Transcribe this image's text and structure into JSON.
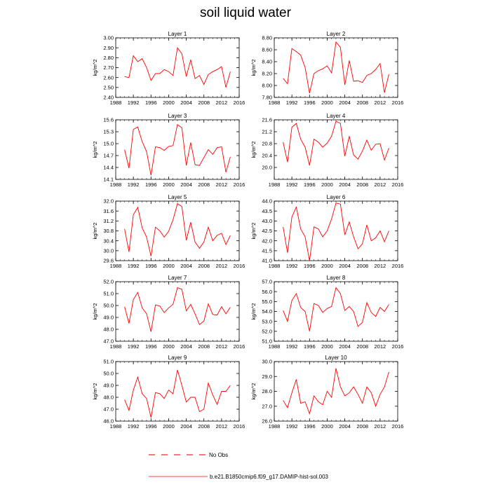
{
  "title": "soil liquid water",
  "legend": {
    "items": [
      {
        "label": "No Obs",
        "style": "dashed",
        "color": "#cc0000"
      },
      {
        "label": "b.e21.B1850cmip6.f09_g17.DAMIP-hist-sol.003",
        "style": "solid",
        "color": "#ff0000"
      }
    ]
  },
  "chart_data": [
    {
      "type": "line",
      "title": "Layer 1",
      "xlabel": "",
      "ylabel": "kg/m^2",
      "xlim": [
        1988,
        2016
      ],
      "ylim": [
        2.4,
        3.0
      ],
      "xticks": [
        "1988",
        "1992",
        "1996",
        "2000",
        "2004",
        "2008",
        "2012",
        "2016"
      ],
      "yticks": [
        "2.40",
        "2.50",
        "2.60",
        "2.70",
        "2.80",
        "2.90",
        "3.00"
      ],
      "x": [
        1990,
        1991,
        1992,
        1993,
        1994,
        1995,
        1996,
        1997,
        1998,
        1999,
        2000,
        2001,
        2002,
        2003,
        2004,
        2005,
        2006,
        2007,
        2008,
        2009,
        2010,
        2011,
        2012,
        2013,
        2014
      ],
      "series": [
        {
          "values": [
            2.61,
            2.6,
            2.82,
            2.76,
            2.79,
            2.7,
            2.57,
            2.64,
            2.64,
            2.68,
            2.66,
            2.62,
            2.9,
            2.84,
            2.61,
            2.78,
            2.59,
            2.62,
            2.53,
            2.63,
            2.66,
            2.68,
            2.71,
            2.5,
            2.66
          ]
        }
      ]
    },
    {
      "type": "line",
      "title": "Layer 2",
      "xlabel": "",
      "ylabel": "kg/m^2",
      "xlim": [
        1988,
        2016
      ],
      "ylim": [
        7.8,
        8.8
      ],
      "xticks": [
        "1988",
        "1992",
        "1996",
        "2000",
        "2004",
        "2008",
        "2012",
        "2016"
      ],
      "yticks": [
        "7.80",
        "8.00",
        "8.20",
        "8.40",
        "8.60",
        "8.80"
      ],
      "x": [
        1990,
        1991,
        1992,
        1993,
        1994,
        1995,
        1996,
        1997,
        1998,
        1999,
        2000,
        2001,
        2002,
        2003,
        2004,
        2005,
        2006,
        2007,
        2008,
        2009,
        2010,
        2011,
        2012,
        2013,
        2014
      ],
      "series": [
        {
          "values": [
            8.12,
            8.03,
            8.62,
            8.57,
            8.51,
            8.3,
            7.87,
            8.2,
            8.25,
            8.28,
            8.33,
            8.21,
            8.73,
            8.64,
            8.01,
            8.42,
            8.07,
            8.08,
            8.05,
            8.17,
            8.2,
            8.27,
            8.37,
            7.88,
            8.19
          ]
        }
      ]
    },
    {
      "type": "line",
      "title": "Layer 3",
      "xlabel": "",
      "ylabel": "kg/m^2",
      "xlim": [
        1988,
        2016
      ],
      "ylim": [
        14.1,
        15.6
      ],
      "xticks": [
        "1988",
        "1992",
        "1996",
        "2000",
        "2004",
        "2008",
        "2012",
        "2016"
      ],
      "yticks": [
        "14.1",
        "14.4",
        "14.7",
        "15.0",
        "15.3",
        "15.6"
      ],
      "x": [
        1990,
        1991,
        1992,
        1993,
        1994,
        1995,
        1996,
        1997,
        1998,
        1999,
        2000,
        2001,
        2002,
        2003,
        2004,
        2005,
        2006,
        2007,
        2008,
        2009,
        2010,
        2011,
        2012,
        2013,
        2014
      ],
      "series": [
        {
          "values": [
            14.85,
            14.38,
            15.36,
            15.42,
            15.05,
            14.8,
            14.2,
            14.92,
            14.9,
            14.83,
            14.93,
            14.95,
            15.48,
            15.4,
            14.45,
            15.03,
            14.47,
            14.45,
            14.65,
            14.85,
            14.73,
            14.9,
            14.92,
            14.28,
            14.67
          ]
        }
      ]
    },
    {
      "type": "line",
      "title": "Layer 4",
      "xlabel": "",
      "ylabel": "kg/m^2",
      "xlim": [
        1988,
        2016
      ],
      "ylim": [
        19.6,
        21.6
      ],
      "xticks": [
        "1988",
        "1992",
        "1996",
        "2000",
        "2004",
        "2008",
        "2012",
        "2016"
      ],
      "yticks": [
        "20.0",
        "20.4",
        "20.8",
        "21.2",
        "21.6"
      ],
      "x": [
        1990,
        1991,
        1992,
        1993,
        1994,
        1995,
        1996,
        1997,
        1998,
        1999,
        2000,
        2001,
        2002,
        2003,
        2004,
        2005,
        2006,
        2007,
        2008,
        2009,
        2010,
        2011,
        2012,
        2013,
        2014
      ],
      "series": [
        {
          "values": [
            20.85,
            20.18,
            21.35,
            21.48,
            20.95,
            20.68,
            20.07,
            20.95,
            20.85,
            20.68,
            20.82,
            21.05,
            21.55,
            21.48,
            20.38,
            21.05,
            20.42,
            20.28,
            20.55,
            20.92,
            20.58,
            20.78,
            20.8,
            20.25,
            20.65
          ]
        }
      ]
    },
    {
      "type": "line",
      "title": "Layer 5",
      "xlabel": "",
      "ylabel": "kg/m^2",
      "xlim": [
        1988,
        2016
      ],
      "ylim": [
        29.6,
        32.0
      ],
      "xticks": [
        "1988",
        "1992",
        "1996",
        "2000",
        "2004",
        "2008",
        "2012",
        "2016"
      ],
      "yticks": [
        "29.6",
        "30.0",
        "30.4",
        "30.8",
        "31.2",
        "31.6",
        "32.0"
      ],
      "x": [
        1990,
        1991,
        1992,
        1993,
        1994,
        1995,
        1996,
        1997,
        1998,
        1999,
        2000,
        2001,
        2002,
        2003,
        2004,
        2005,
        2006,
        2007,
        2008,
        2009,
        2010,
        2011,
        2012,
        2013,
        2014
      ],
      "series": [
        {
          "values": [
            30.88,
            29.95,
            31.45,
            31.75,
            30.92,
            30.55,
            29.78,
            30.95,
            30.8,
            30.55,
            30.78,
            31.25,
            31.9,
            31.78,
            30.42,
            31.15,
            30.35,
            30.1,
            30.35,
            30.95,
            30.4,
            30.62,
            30.7,
            30.25,
            30.62
          ]
        }
      ]
    },
    {
      "type": "line",
      "title": "Layer 6",
      "xlabel": "",
      "ylabel": "kg/m^2",
      "xlim": [
        1988,
        2016
      ],
      "ylim": [
        41.0,
        44.0
      ],
      "xticks": [
        "1988",
        "1992",
        "1996",
        "2000",
        "2004",
        "2008",
        "2012",
        "2016"
      ],
      "yticks": [
        "41.0",
        "41.5",
        "42.0",
        "42.5",
        "43.0",
        "43.5",
        "44.0"
      ],
      "x": [
        1990,
        1991,
        1992,
        1993,
        1994,
        1995,
        1996,
        1997,
        1998,
        1999,
        2000,
        2001,
        2002,
        2003,
        2004,
        2005,
        2006,
        2007,
        2008,
        2009,
        2010,
        2011,
        2012,
        2013,
        2014
      ],
      "series": [
        {
          "values": [
            42.7,
            41.4,
            43.2,
            43.7,
            42.6,
            42.2,
            41.0,
            42.7,
            42.6,
            42.2,
            42.5,
            43.1,
            43.9,
            43.85,
            42.3,
            42.95,
            42.2,
            41.6,
            41.85,
            42.8,
            42.0,
            42.15,
            42.5,
            41.95,
            42.5
          ]
        }
      ]
    },
    {
      "type": "line",
      "title": "Layer 7",
      "xlabel": "",
      "ylabel": "kg/m^2",
      "xlim": [
        1988,
        2016
      ],
      "ylim": [
        47.0,
        52.0
      ],
      "xticks": [
        "1988",
        "1992",
        "1996",
        "2000",
        "2004",
        "2008",
        "2012",
        "2016"
      ],
      "yticks": [
        "47.0",
        "48.0",
        "49.0",
        "50.0",
        "51.0",
        "52.0"
      ],
      "x": [
        1990,
        1991,
        1992,
        1993,
        1994,
        1995,
        1996,
        1997,
        1998,
        1999,
        2000,
        2001,
        2002,
        2003,
        2004,
        2005,
        2006,
        2007,
        2008,
        2009,
        2010,
        2011,
        2012,
        2013,
        2014
      ],
      "series": [
        {
          "values": [
            49.9,
            48.5,
            50.5,
            51.1,
            49.8,
            49.3,
            47.8,
            50.05,
            49.95,
            49.4,
            49.8,
            50.1,
            51.5,
            51.35,
            49.55,
            50.1,
            49.3,
            48.4,
            48.7,
            50.15,
            49.25,
            49.2,
            49.9,
            49.3,
            49.85
          ]
        }
      ]
    },
    {
      "type": "line",
      "title": "Layer 8",
      "xlabel": "",
      "ylabel": "kg/m^2",
      "xlim": [
        1988,
        2016
      ],
      "ylim": [
        51.0,
        57.0
      ],
      "xticks": [
        "1988",
        "1992",
        "1996",
        "2000",
        "2004",
        "2008",
        "2012",
        "2016"
      ],
      "yticks": [
        "51.0",
        "52.0",
        "53.0",
        "54.0",
        "55.0",
        "56.0",
        "57.0"
      ],
      "x": [
        1990,
        1991,
        1992,
        1993,
        1994,
        1995,
        1996,
        1997,
        1998,
        1999,
        2000,
        2001,
        2002,
        2003,
        2004,
        2005,
        2006,
        2007,
        2008,
        2009,
        2010,
        2011,
        2012,
        2013,
        2014
      ],
      "series": [
        {
          "values": [
            54.1,
            53.0,
            55.1,
            55.8,
            54.4,
            54.0,
            52.0,
            54.8,
            54.6,
            53.9,
            54.3,
            54.5,
            56.4,
            55.8,
            54.1,
            54.5,
            54.0,
            52.5,
            52.9,
            54.9,
            53.9,
            53.5,
            54.4,
            54.0,
            54.7
          ]
        }
      ]
    },
    {
      "type": "line",
      "title": "Layer 9",
      "xlabel": "",
      "ylabel": "kg/m^2",
      "xlim": [
        1988,
        2016
      ],
      "ylim": [
        46.0,
        51.0
      ],
      "xticks": [
        "1988",
        "1992",
        "1996",
        "2000",
        "2004",
        "2008",
        "2012",
        "2016"
      ],
      "yticks": [
        "46.0",
        "47.0",
        "48.0",
        "49.0",
        "50.0",
        "51.0"
      ],
      "x": [
        1990,
        1991,
        1992,
        1993,
        1994,
        1995,
        1996,
        1997,
        1998,
        1999,
        2000,
        2001,
        2002,
        2003,
        2004,
        2005,
        2006,
        2007,
        2008,
        2009,
        2010,
        2011,
        2012,
        2013,
        2014
      ],
      "series": [
        {
          "values": [
            47.8,
            46.9,
            48.6,
            49.7,
            48.3,
            47.9,
            46.3,
            48.4,
            48.3,
            47.9,
            48.6,
            48.3,
            50.3,
            49.0,
            47.6,
            48.0,
            48.0,
            46.8,
            47.0,
            49.2,
            48.2,
            47.4,
            48.5,
            48.5,
            49.0
          ]
        }
      ]
    },
    {
      "type": "line",
      "title": "Layer 10",
      "xlabel": "",
      "ylabel": "kg/m^2",
      "xlim": [
        1988,
        2016
      ],
      "ylim": [
        26.0,
        30.0
      ],
      "xticks": [
        "1988",
        "1992",
        "1996",
        "2000",
        "2004",
        "2008",
        "2012",
        "2016"
      ],
      "yticks": [
        "26.0",
        "27.0",
        "28.0",
        "29.0",
        "30.0"
      ],
      "x": [
        1990,
        1991,
        1992,
        1993,
        1994,
        1995,
        1996,
        1997,
        1998,
        1999,
        2000,
        2001,
        2002,
        2003,
        2004,
        2005,
        2006,
        2007,
        2008,
        2009,
        2010,
        2011,
        2012,
        2013,
        2014
      ],
      "series": [
        {
          "values": [
            27.4,
            26.9,
            27.9,
            28.8,
            27.2,
            27.3,
            26.5,
            27.7,
            27.3,
            27.1,
            28.0,
            27.6,
            29.55,
            28.3,
            27.7,
            27.9,
            28.3,
            27.8,
            27.2,
            28.3,
            27.9,
            27.0,
            27.8,
            28.3,
            29.3
          ]
        }
      ]
    }
  ]
}
